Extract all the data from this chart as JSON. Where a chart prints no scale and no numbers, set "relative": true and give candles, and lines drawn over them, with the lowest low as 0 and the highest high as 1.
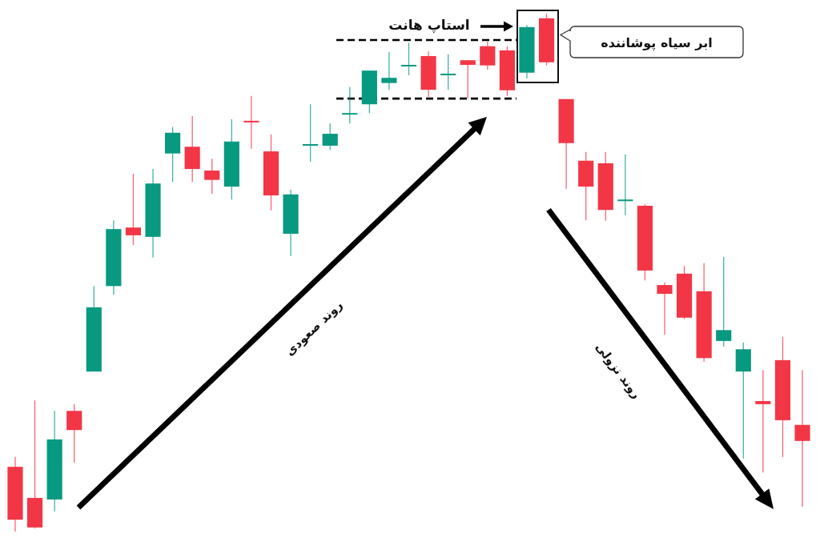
{
  "chart_data": {
    "type": "candlestick",
    "relative": true,
    "categories": [
      null,
      null,
      null,
      null,
      null,
      null,
      null,
      null,
      null,
      null,
      null,
      null,
      null,
      null,
      null,
      null,
      null,
      null,
      null,
      null,
      null,
      null,
      null,
      null,
      null,
      null,
      null,
      null,
      null,
      null,
      null,
      null,
      null,
      null,
      null,
      null,
      null,
      null,
      null,
      null,
      null
    ],
    "ohlc": [
      [
        0.125,
        0.144,
        0,
        0.023
      ],
      [
        0.065,
        0.253,
        0.006,
        0.008
      ],
      [
        0.062,
        0.233,
        0.039,
        0.178
      ],
      [
        0.233,
        0.246,
        0.133,
        0.196
      ],
      [
        0.309,
        0.474,
        0.309,
        0.433
      ],
      [
        0.474,
        0.601,
        0.457,
        0.584
      ],
      [
        0.587,
        0.691,
        0.553,
        0.572
      ],
      [
        0.569,
        0.7,
        0.529,
        0.672
      ],
      [
        0.73,
        0.781,
        0.675,
        0.77
      ],
      [
        0.743,
        0.802,
        0.675,
        0.7
      ],
      [
        0.697,
        0.72,
        0.652,
        0.679
      ],
      [
        0.666,
        0.796,
        0.641,
        0.753
      ],
      [
        0.793,
        0.841,
        0.739,
        0.79
      ],
      [
        0.734,
        0.767,
        0.62,
        0.649
      ],
      [
        0.575,
        0.66,
        0.532,
        0.651
      ],
      [
        0.745,
        0.825,
        0.714,
        0.748
      ],
      [
        0.745,
        0.788,
        0.737,
        0.768
      ],
      [
        0.805,
        0.858,
        0.788,
        0.808
      ],
      [
        0.825,
        0.89,
        0.808,
        0.89
      ],
      [
        0.866,
        0.926,
        0.853,
        0.876
      ],
      [
        0.898,
        0.944,
        0.881,
        0.901
      ],
      [
        0.918,
        0.927,
        0.839,
        0.853
      ],
      [
        0.881,
        0.921,
        0.853,
        0.884
      ],
      [
        0.91,
        0.91,
        0.836,
        0.901
      ],
      [
        0.937,
        0.946,
        0.892,
        0.9
      ],
      [
        0.929,
        0.937,
        0.841,
        0.852
      ],
      [
        0.886,
        0.978,
        0.875,
        0.974
      ],
      [
        0.991,
        1,
        0.9,
        0.906
      ],
      [
        0.835,
        0.835,
        0.662,
        0.75
      ],
      [
        0.716,
        0.733,
        0.601,
        0.666
      ],
      [
        0.711,
        0.733,
        0.6,
        0.621
      ],
      [
        0.638,
        0.728,
        0.611,
        0.641
      ],
      [
        0.629,
        0.632,
        0.485,
        0.504
      ],
      [
        0.476,
        0.481,
        0.38,
        0.459
      ],
      [
        0.498,
        0.513,
        0.41,
        0.413
      ],
      [
        0.464,
        0.518,
        0.328,
        0.335
      ],
      [
        0.368,
        0.53,
        0.357,
        0.389
      ],
      [
        0.309,
        0.365,
        0.141,
        0.352
      ],
      [
        0.252,
        0.312,
        0.114,
        0.246
      ],
      [
        0.331,
        0.376,
        0.144,
        0.215
      ],
      [
        0.206,
        0.312,
        0.048,
        0.175
      ]
    ],
    "colors": [
      "#f23645",
      "#f23645",
      "#089981",
      "#f23645",
      "#089981",
      "#089981",
      "#f23645",
      "#089981",
      "#089981",
      "#f23645",
      "#f23645",
      "#089981",
      "#f23645",
      "#f23645",
      "#089981",
      "#089981",
      "#089981",
      "#089981",
      "#089981",
      "#089981",
      "#089981",
      "#f23645",
      "#089981",
      "#f23645",
      "#f23645",
      "#f23645",
      "#089981",
      "#f23645",
      "#f23645",
      "#f23645",
      "#f23645",
      "#089981",
      "#f23645",
      "#f23645",
      "#f23645",
      "#f23645",
      "#089981",
      "#089981",
      "#f23645",
      "#f23645",
      "#f23645"
    ],
    "ref_lines": [
      {
        "axis": "y",
        "value": 0.949,
        "label": null,
        "color": "#000000",
        "line_style": "dashed"
      },
      {
        "axis": "y",
        "value": 0.836,
        "label": null,
        "color": "#000000",
        "line_style": "dashed"
      }
    ],
    "annotations": [
      "استاپ هانت",
      "ابر سیاه پوشاننده",
      "روند صعودی",
      "روند نزولی"
    ]
  }
}
